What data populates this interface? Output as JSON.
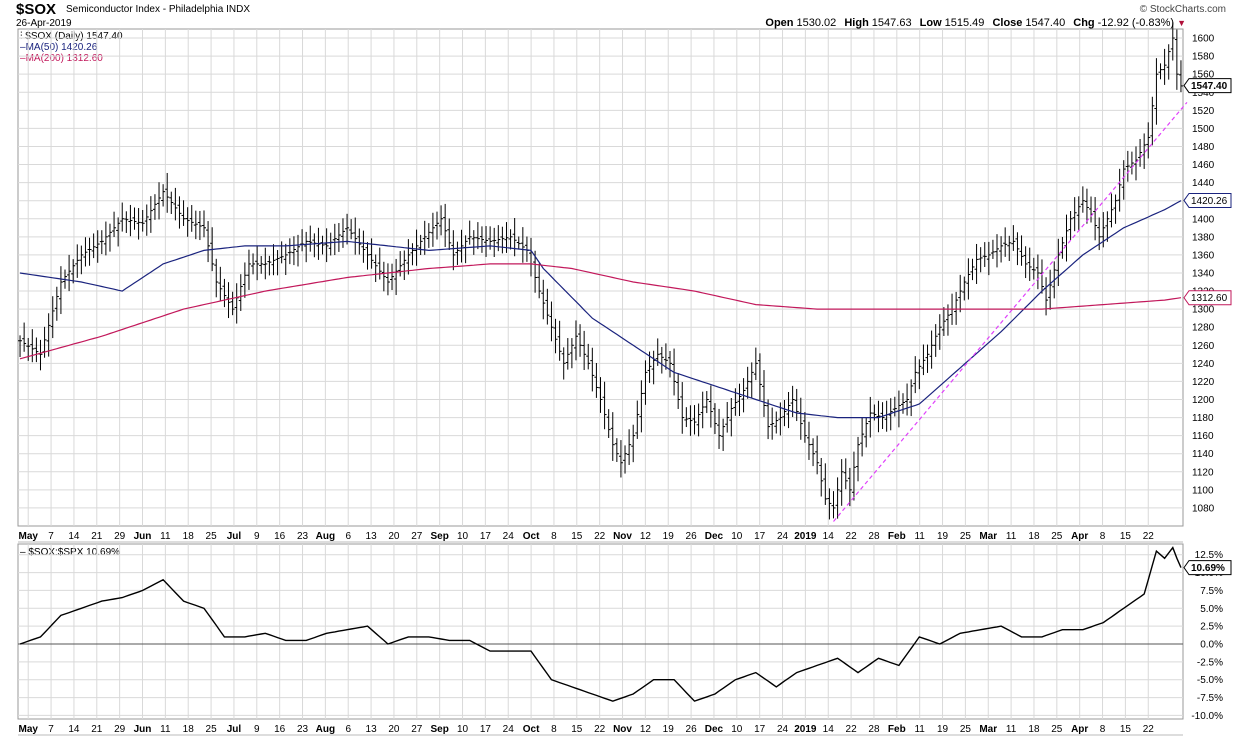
{
  "header": {
    "symbol": "$SOX",
    "description": "Semiconductor Index - Philadelphia INDX",
    "date": "26-Apr-2019",
    "brand": "© StockCharts.com",
    "open_label": "Open",
    "open": "1530.02",
    "high_label": "High",
    "high": "1547.63",
    "low_label": "Low",
    "low": "1515.49",
    "close_label": "Close",
    "close": "1547.40",
    "chg_label": "Chg",
    "chg": "-12.92 (-0.83%)"
  },
  "legend": {
    "price": "$SOX (Daily) 1547.40",
    "ma50": "MA(50) 1420.26",
    "ma200": "MA(200) 1312.60",
    "ratio": "$SOX:$SPX 10.69%"
  },
  "colors": {
    "ma50": "#1a237e",
    "ma200": "#c2185b",
    "trendline": "#e040fb",
    "bars": "#000000",
    "grid": "#d9d9d9"
  },
  "chart_data": [
    {
      "type": "ohlc",
      "title": "$SOX Semiconductor Index - Philadelphia INDX",
      "ylim": [
        1060,
        1610
      ],
      "y_ticks": [
        1080,
        1100,
        1120,
        1140,
        1160,
        1180,
        1200,
        1220,
        1240,
        1260,
        1280,
        1300,
        1320,
        1340,
        1360,
        1380,
        1400,
        1420,
        1440,
        1460,
        1480,
        1500,
        1520,
        1540,
        1560,
        1580,
        1600
      ],
      "x_labels": [
        "May",
        "7",
        "14",
        "21",
        "29",
        "Jun",
        "11",
        "18",
        "25",
        "Jul",
        "9",
        "16",
        "23",
        "Aug",
        "6",
        "13",
        "20",
        "27",
        "Sep",
        "10",
        "17",
        "24",
        "Oct",
        "8",
        "15",
        "22",
        "Nov",
        "12",
        "19",
        "26",
        "Dec",
        "10",
        "17",
        "24",
        "2019",
        "14",
        "22",
        "28",
        "Feb",
        "11",
        "19",
        "25",
        "Mar",
        "11",
        "18",
        "25",
        "Apr",
        "8",
        "15",
        "22"
      ],
      "x_bold": [
        "May",
        "Jun",
        "Jul",
        "Aug",
        "Sep",
        "Oct",
        "Nov",
        "Dec",
        "2019",
        "Feb",
        "Mar",
        "Apr"
      ],
      "close_anchors": [
        [
          0,
          1265
        ],
        [
          5,
          1250
        ],
        [
          10,
          1330
        ],
        [
          15,
          1360
        ],
        [
          20,
          1375
        ],
        [
          25,
          1400
        ],
        [
          30,
          1395
        ],
        [
          35,
          1430
        ],
        [
          40,
          1400
        ],
        [
          45,
          1390
        ],
        [
          48,
          1330
        ],
        [
          52,
          1300
        ],
        [
          56,
          1350
        ],
        [
          60,
          1350
        ],
        [
          65,
          1360
        ],
        [
          70,
          1375
        ],
        [
          75,
          1370
        ],
        [
          80,
          1390
        ],
        [
          85,
          1360
        ],
        [
          90,
          1330
        ],
        [
          95,
          1360
        ],
        [
          100,
          1385
        ],
        [
          103,
          1400
        ],
        [
          106,
          1360
        ],
        [
          110,
          1380
        ],
        [
          115,
          1375
        ],
        [
          120,
          1380
        ],
        [
          124,
          1365
        ],
        [
          127,
          1320
        ],
        [
          130,
          1280
        ],
        [
          133,
          1240
        ],
        [
          136,
          1270
        ],
        [
          139,
          1240
        ],
        [
          142,
          1200
        ],
        [
          145,
          1150
        ],
        [
          147,
          1130
        ],
        [
          150,
          1160
        ],
        [
          153,
          1230
        ],
        [
          156,
          1250
        ],
        [
          159,
          1240
        ],
        [
          162,
          1180
        ],
        [
          165,
          1175
        ],
        [
          168,
          1200
        ],
        [
          171,
          1160
        ],
        [
          174,
          1190
        ],
        [
          177,
          1210
        ],
        [
          180,
          1240
        ],
        [
          183,
          1170
        ],
        [
          186,
          1180
        ],
        [
          189,
          1200
        ],
        [
          192,
          1160
        ],
        [
          195,
          1130
        ],
        [
          197,
          1090
        ],
        [
          199,
          1080
        ],
        [
          201,
          1120
        ],
        [
          203,
          1100
        ],
        [
          205,
          1150
        ],
        [
          208,
          1185
        ],
        [
          211,
          1180
        ],
        [
          214,
          1190
        ],
        [
          217,
          1200
        ],
        [
          219,
          1230
        ],
        [
          222,
          1250
        ],
        [
          225,
          1280
        ],
        [
          228,
          1300
        ],
        [
          231,
          1330
        ],
        [
          234,
          1355
        ],
        [
          237,
          1360
        ],
        [
          240,
          1370
        ],
        [
          243,
          1375
        ],
        [
          246,
          1350
        ],
        [
          249,
          1340
        ],
        [
          251,
          1310
        ],
        [
          254,
          1360
        ],
        [
          257,
          1400
        ],
        [
          260,
          1420
        ],
        [
          262,
          1405
        ],
        [
          264,
          1380
        ],
        [
          266,
          1400
        ],
        [
          268,
          1420
        ],
        [
          270,
          1455
        ],
        [
          273,
          1465
        ],
        [
          276,
          1490
        ],
        [
          278,
          1560
        ],
        [
          280,
          1570
        ],
        [
          282,
          1600
        ],
        [
          283,
          1560
        ],
        [
          284,
          1547
        ]
      ],
      "ma50_anchors": [
        [
          0,
          1340
        ],
        [
          15,
          1330
        ],
        [
          25,
          1320
        ],
        [
          35,
          1350
        ],
        [
          45,
          1365
        ],
        [
          55,
          1370
        ],
        [
          65,
          1370
        ],
        [
          80,
          1375
        ],
        [
          100,
          1365
        ],
        [
          115,
          1370
        ],
        [
          125,
          1365
        ],
        [
          128,
          1345
        ],
        [
          140,
          1290
        ],
        [
          150,
          1260
        ],
        [
          160,
          1230
        ],
        [
          170,
          1215
        ],
        [
          180,
          1200
        ],
        [
          190,
          1185
        ],
        [
          200,
          1180
        ],
        [
          210,
          1180
        ],
        [
          220,
          1195
        ],
        [
          230,
          1235
        ],
        [
          240,
          1275
        ],
        [
          250,
          1320
        ],
        [
          260,
          1360
        ],
        [
          270,
          1390
        ],
        [
          280,
          1410
        ],
        [
          284,
          1420
        ]
      ],
      "ma200_anchors": [
        [
          0,
          1245
        ],
        [
          20,
          1270
        ],
        [
          40,
          1300
        ],
        [
          60,
          1320
        ],
        [
          80,
          1335
        ],
        [
          100,
          1345
        ],
        [
          115,
          1350
        ],
        [
          125,
          1350
        ],
        [
          135,
          1345
        ],
        [
          150,
          1330
        ],
        [
          165,
          1320
        ],
        [
          180,
          1305
        ],
        [
          195,
          1300
        ],
        [
          205,
          1300
        ],
        [
          215,
          1300
        ],
        [
          230,
          1300
        ],
        [
          240,
          1300
        ],
        [
          250,
          1300
        ],
        [
          265,
          1305
        ],
        [
          280,
          1310
        ],
        [
          284,
          1312.6
        ]
      ],
      "trendline": {
        "start": [
          199,
          1065
        ],
        "end": [
          284,
          1520
        ]
      },
      "price_tag": "1547.40",
      "ma50_tag": "1420.26",
      "ma200_tag": "1312.60"
    },
    {
      "type": "line",
      "title": "$SOX:$SPX 10.69%",
      "ylim": [
        -10.5,
        14
      ],
      "y_ticks": [
        -10,
        -7.5,
        -5,
        -2.5,
        0,
        2.5,
        5,
        7.5,
        10,
        12.5
      ],
      "y_tick_labels": [
        "-10.0%",
        "-7.5%",
        "-5.0%",
        "-2.5%",
        "0.0%",
        "2.5%",
        "5.0%",
        "7.5%",
        "10.0%",
        "12.5%"
      ],
      "ratio_anchors": [
        [
          0,
          0
        ],
        [
          5,
          1
        ],
        [
          10,
          4
        ],
        [
          15,
          5
        ],
        [
          20,
          6
        ],
        [
          25,
          6.5
        ],
        [
          30,
          7.5
        ],
        [
          35,
          9
        ],
        [
          40,
          6
        ],
        [
          45,
          5
        ],
        [
          50,
          1
        ],
        [
          55,
          1
        ],
        [
          60,
          1.5
        ],
        [
          65,
          0.5
        ],
        [
          70,
          0.5
        ],
        [
          75,
          1.5
        ],
        [
          80,
          2
        ],
        [
          85,
          2.5
        ],
        [
          90,
          0
        ],
        [
          95,
          1
        ],
        [
          100,
          1
        ],
        [
          105,
          0.5
        ],
        [
          110,
          0.5
        ],
        [
          115,
          -1
        ],
        [
          125,
          -1
        ],
        [
          130,
          -5
        ],
        [
          140,
          -7
        ],
        [
          145,
          -8
        ],
        [
          150,
          -7
        ],
        [
          155,
          -5
        ],
        [
          160,
          -5
        ],
        [
          165,
          -8
        ],
        [
          170,
          -7
        ],
        [
          175,
          -5
        ],
        [
          180,
          -4
        ],
        [
          185,
          -6
        ],
        [
          190,
          -4
        ],
        [
          195,
          -3
        ],
        [
          200,
          -2
        ],
        [
          205,
          -4
        ],
        [
          210,
          -2
        ],
        [
          215,
          -3
        ],
        [
          220,
          1
        ],
        [
          225,
          0
        ],
        [
          230,
          1.5
        ],
        [
          235,
          2
        ],
        [
          240,
          2.5
        ],
        [
          245,
          1
        ],
        [
          250,
          1
        ],
        [
          255,
          2
        ],
        [
          260,
          2
        ],
        [
          265,
          3
        ],
        [
          270,
          5
        ],
        [
          275,
          7
        ],
        [
          278,
          13
        ],
        [
          280,
          12
        ],
        [
          282,
          13.5
        ],
        [
          283,
          12
        ],
        [
          284,
          10.69
        ]
      ],
      "value_tag": "10.69%"
    }
  ]
}
